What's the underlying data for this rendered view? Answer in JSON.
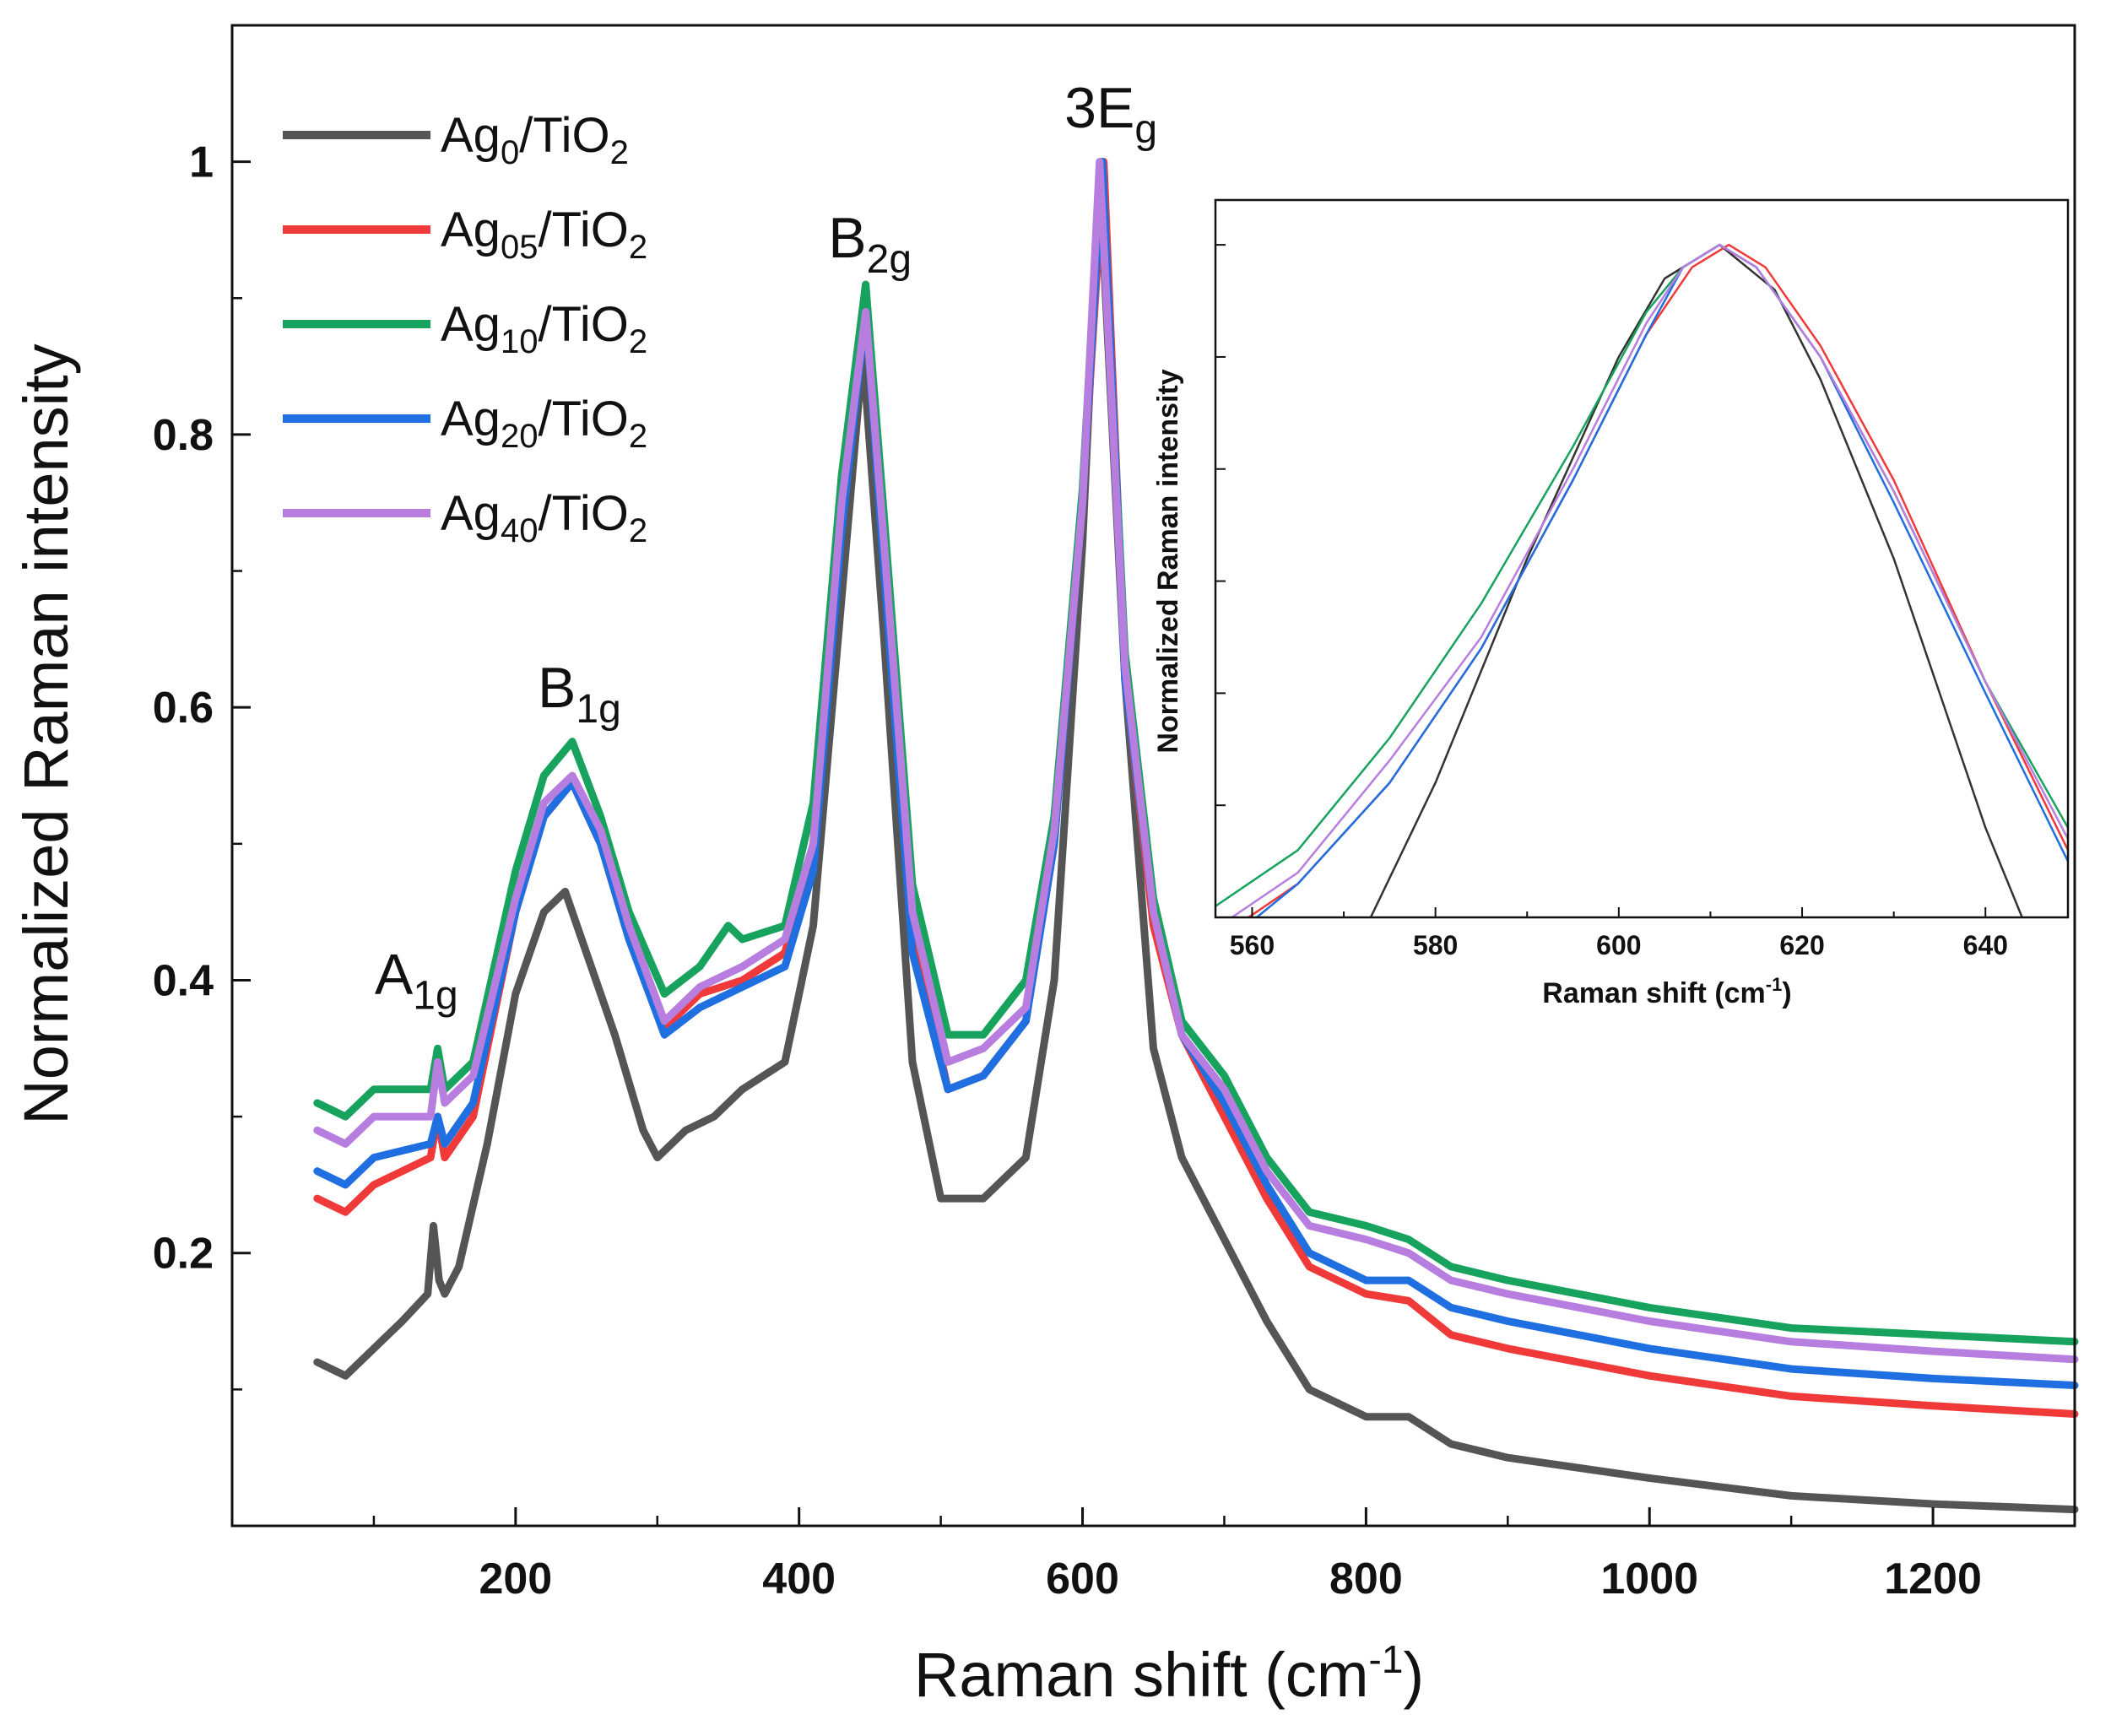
{
  "chart_data": [
    {
      "type": "line",
      "title": "",
      "xlabel": "Raman shift (cm",
      "xlabel_sup": "-1",
      "xlabel_close": ")",
      "ylabel": "Normalized Raman intensity",
      "xlim": [
        0,
        1300
      ],
      "ylim": [
        0,
        1.1
      ],
      "xticks": [
        200,
        400,
        600,
        800,
        1000,
        1200
      ],
      "xtick_labels": [
        "200",
        "400",
        "600",
        "800",
        "1000",
        "1200"
      ],
      "yticks": [
        0.2,
        0.4,
        0.6,
        0.8,
        1.0
      ],
      "ytick_labels": [
        "0.2",
        "0.4",
        "0.6",
        "0.8",
        "1"
      ],
      "legend_position": "top-left",
      "peak_labels": [
        {
          "base": "A",
          "sub": "1g",
          "x": 130,
          "y": 0.39
        },
        {
          "base": "B",
          "sub": "1g",
          "x": 245,
          "y": 0.6
        },
        {
          "base": "B",
          "sub": "2g",
          "x": 450,
          "y": 0.93
        },
        {
          "base": "3E",
          "sub": "g",
          "x": 620,
          "y": 1.025
        }
      ],
      "series": [
        {
          "name": "Ag0/TiO2",
          "label_base": "Ag",
          "label_sub": "0",
          "label_tail": "/TiO",
          "label_tail_sub": "2",
          "color": "#555555",
          "x": [
            60,
            80,
            100,
            120,
            138,
            142,
            146,
            150,
            160,
            180,
            200,
            220,
            235,
            250,
            270,
            290,
            300,
            320,
            340,
            360,
            390,
            410,
            430,
            445,
            460,
            480,
            500,
            530,
            560,
            580,
            600,
            612,
            630,
            650,
            670,
            700,
            730,
            760,
            800,
            830,
            860,
            900,
            1000,
            1100,
            1200,
            1300
          ],
          "values": [
            0.12,
            0.11,
            0.13,
            0.15,
            0.17,
            0.22,
            0.18,
            0.17,
            0.19,
            0.28,
            0.39,
            0.45,
            0.465,
            0.42,
            0.36,
            0.29,
            0.27,
            0.29,
            0.3,
            0.32,
            0.34,
            0.44,
            0.68,
            0.86,
            0.65,
            0.34,
            0.24,
            0.24,
            0.27,
            0.4,
            0.72,
            0.99,
            0.62,
            0.35,
            0.27,
            0.21,
            0.15,
            0.1,
            0.08,
            0.08,
            0.06,
            0.05,
            0.035,
            0.022,
            0.016,
            0.012
          ]
        },
        {
          "name": "Ag05/TiO2",
          "label_base": "Ag",
          "label_sub": "05",
          "label_tail": "/TiO",
          "label_tail_sub": "2",
          "color": "#f03a3a",
          "x": [
            60,
            80,
            100,
            140,
            145,
            150,
            170,
            200,
            220,
            240,
            260,
            280,
            305,
            330,
            360,
            390,
            410,
            430,
            447,
            460,
            480,
            505,
            530,
            560,
            580,
            600,
            615,
            630,
            650,
            670,
            700,
            730,
            760,
            800,
            830,
            860,
            900,
            1000,
            1100,
            1200,
            1300
          ],
          "values": [
            0.24,
            0.23,
            0.25,
            0.27,
            0.3,
            0.27,
            0.3,
            0.45,
            0.52,
            0.545,
            0.5,
            0.43,
            0.365,
            0.39,
            0.4,
            0.42,
            0.5,
            0.75,
            0.91,
            0.72,
            0.44,
            0.32,
            0.33,
            0.37,
            0.5,
            0.75,
            1.0,
            0.62,
            0.44,
            0.36,
            0.3,
            0.24,
            0.19,
            0.17,
            0.165,
            0.14,
            0.13,
            0.11,
            0.095,
            0.088,
            0.082
          ]
        },
        {
          "name": "Ag10/TiO2",
          "label_base": "Ag",
          "label_sub": "10",
          "label_tail": "/TiO",
          "label_tail_sub": "2",
          "color": "#17a35d",
          "x": [
            60,
            80,
            100,
            140,
            145,
            150,
            170,
            200,
            220,
            240,
            260,
            280,
            305,
            330,
            350,
            360,
            390,
            410,
            430,
            447,
            460,
            480,
            505,
            530,
            560,
            580,
            600,
            613,
            630,
            650,
            670,
            700,
            730,
            760,
            800,
            830,
            860,
            900,
            1000,
            1100,
            1200,
            1300
          ],
          "values": [
            0.31,
            0.3,
            0.32,
            0.32,
            0.35,
            0.32,
            0.34,
            0.48,
            0.55,
            0.575,
            0.52,
            0.45,
            0.39,
            0.41,
            0.44,
            0.43,
            0.44,
            0.53,
            0.77,
            0.91,
            0.74,
            0.47,
            0.36,
            0.36,
            0.4,
            0.52,
            0.76,
            1.0,
            0.64,
            0.46,
            0.37,
            0.33,
            0.27,
            0.23,
            0.22,
            0.21,
            0.19,
            0.18,
            0.16,
            0.145,
            0.14,
            0.135
          ]
        },
        {
          "name": "Ag20/TiO2",
          "label_base": "Ag",
          "label_sub": "20",
          "label_tail": "/TiO",
          "label_tail_sub": "2",
          "color": "#1f6fe0",
          "x": [
            60,
            80,
            100,
            140,
            145,
            150,
            170,
            200,
            220,
            240,
            260,
            280,
            305,
            330,
            360,
            390,
            410,
            430,
            447,
            460,
            480,
            505,
            530,
            560,
            580,
            600,
            614,
            630,
            650,
            670,
            700,
            730,
            760,
            800,
            830,
            860,
            900,
            1000,
            1100,
            1200,
            1300
          ],
          "values": [
            0.26,
            0.25,
            0.27,
            0.28,
            0.3,
            0.28,
            0.31,
            0.45,
            0.52,
            0.545,
            0.5,
            0.43,
            0.36,
            0.38,
            0.395,
            0.41,
            0.48,
            0.73,
            0.89,
            0.7,
            0.42,
            0.32,
            0.33,
            0.37,
            0.5,
            0.75,
            1.0,
            0.62,
            0.45,
            0.36,
            0.31,
            0.25,
            0.2,
            0.18,
            0.18,
            0.16,
            0.15,
            0.13,
            0.115,
            0.108,
            0.103
          ]
        },
        {
          "name": "Ag40/TiO2",
          "label_base": "Ag",
          "label_sub": "40",
          "label_tail": "/TiO",
          "label_tail_sub": "2",
          "color": "#b77ee0",
          "x": [
            60,
            80,
            100,
            140,
            145,
            150,
            170,
            200,
            220,
            240,
            260,
            280,
            305,
            330,
            360,
            390,
            410,
            430,
            447,
            460,
            480,
            505,
            530,
            560,
            580,
            600,
            612,
            630,
            650,
            670,
            700,
            730,
            760,
            800,
            830,
            860,
            900,
            1000,
            1100,
            1200,
            1300
          ],
          "values": [
            0.29,
            0.28,
            0.3,
            0.3,
            0.34,
            0.31,
            0.33,
            0.46,
            0.53,
            0.55,
            0.51,
            0.44,
            0.37,
            0.395,
            0.41,
            0.43,
            0.5,
            0.75,
            0.89,
            0.72,
            0.45,
            0.34,
            0.35,
            0.38,
            0.51,
            0.75,
            1.0,
            0.63,
            0.45,
            0.36,
            0.32,
            0.26,
            0.22,
            0.21,
            0.2,
            0.18,
            0.17,
            0.15,
            0.135,
            0.128,
            0.122
          ]
        }
      ]
    },
    {
      "type": "line",
      "title": "",
      "xlabel": "Raman shift (cm",
      "xlabel_sup": "-1",
      "xlabel_close": ")",
      "ylabel": "Normalized Raman intensity",
      "xlim": [
        556,
        649
      ],
      "ylim": [
        0.4,
        1.04
      ],
      "xticks": [
        560,
        580,
        600,
        620,
        640
      ],
      "xtick_labels": [
        "560",
        "580",
        "600",
        "620",
        "640"
      ],
      "yticks": [
        0.5,
        0.6,
        0.7,
        0.8,
        0.9,
        1.0
      ],
      "series": [
        {
          "name": "Ag0/TiO2",
          "color": "#333333",
          "x": [
            570,
            580,
            590,
            600,
            605,
            611,
            617,
            622,
            630,
            640,
            649
          ],
          "values": [
            0.35,
            0.52,
            0.72,
            0.9,
            0.97,
            1.0,
            0.96,
            0.88,
            0.72,
            0.48,
            0.3
          ]
        },
        {
          "name": "Ag05/TiO2",
          "color": "#f03a3a",
          "x": [
            556,
            565,
            575,
            585,
            595,
            603,
            608,
            612,
            616,
            622,
            630,
            640,
            649
          ],
          "values": [
            0.38,
            0.43,
            0.52,
            0.64,
            0.79,
            0.92,
            0.98,
            1.0,
            0.98,
            0.91,
            0.79,
            0.61,
            0.46
          ]
        },
        {
          "name": "Ag10/TiO2",
          "color": "#17a35d",
          "x": [
            556,
            565,
            575,
            585,
            595,
            603,
            607,
            611,
            615,
            622,
            630,
            640,
            649
          ],
          "values": [
            0.41,
            0.46,
            0.56,
            0.68,
            0.82,
            0.94,
            0.98,
            1.0,
            0.98,
            0.9,
            0.78,
            0.61,
            0.48
          ]
        },
        {
          "name": "Ag20/TiO2",
          "color": "#1f6fe0",
          "x": [
            556,
            565,
            575,
            585,
            595,
            603,
            607,
            611,
            615,
            622,
            630,
            640,
            649
          ],
          "values": [
            0.37,
            0.43,
            0.52,
            0.64,
            0.79,
            0.92,
            0.98,
            1.0,
            0.98,
            0.9,
            0.77,
            0.6,
            0.45
          ]
        },
        {
          "name": "Ag40/TiO2",
          "color": "#b77ee0",
          "x": [
            556,
            565,
            575,
            585,
            595,
            603,
            607,
            611,
            615,
            622,
            630,
            640,
            649
          ],
          "values": [
            0.39,
            0.44,
            0.54,
            0.65,
            0.8,
            0.93,
            0.98,
            1.0,
            0.98,
            0.9,
            0.78,
            0.61,
            0.47
          ]
        }
      ]
    }
  ]
}
